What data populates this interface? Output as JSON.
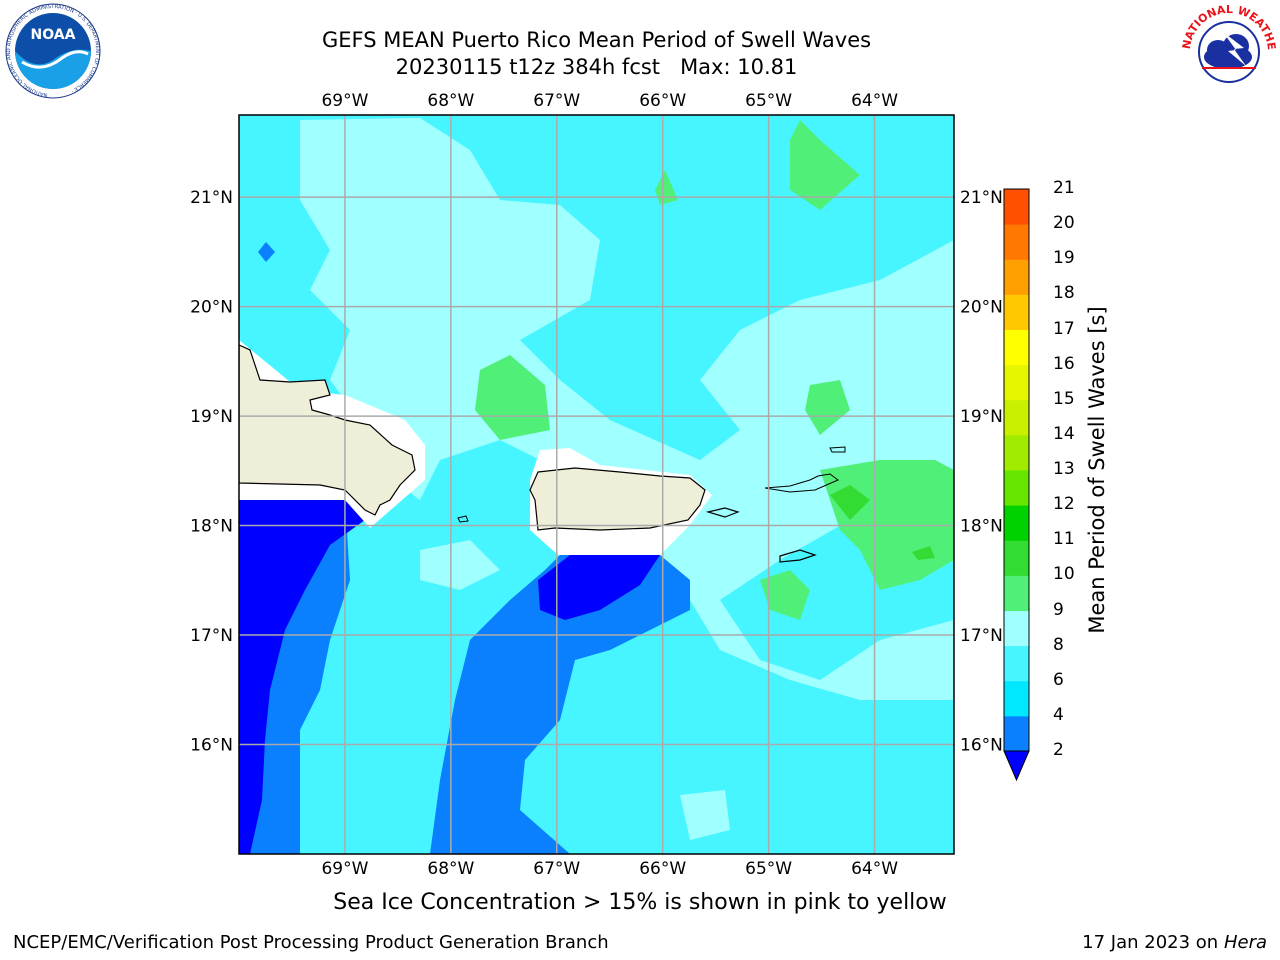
{
  "title": {
    "line1": "GEFS MEAN Puerto Rico Mean Period of Swell Waves",
    "line2": "20230115 t12z 384h fcst   Max: 10.81"
  },
  "logos": {
    "left": "NOAA",
    "left_ring_text": "NATIONAL OCEANIC AND ATMOSPHERIC ADMINISTRATION · U.S. DEPARTMENT OF COMMERCE ·",
    "right_ring_text": "NATIONAL WEATHER SERVICE"
  },
  "map": {
    "lon_ticks": [
      "69°W",
      "68°W",
      "67°W",
      "66°W",
      "65°W",
      "64°W"
    ],
    "lat_ticks": [
      "21°N",
      "20°N",
      "19°N",
      "18°N",
      "17°N",
      "16°N"
    ],
    "lon_values": [
      -69,
      -68,
      -67,
      -66,
      -65,
      -64
    ],
    "lat_values": [
      21,
      20,
      19,
      18,
      17,
      16
    ],
    "extent": {
      "lon_min": -70.0,
      "lon_max": -63.25,
      "lat_min": 15.0,
      "lat_max": 21.75
    },
    "grid": true
  },
  "colorbar": {
    "label": "Mean Period of Swell Waves [s]",
    "ticks": [
      "2",
      "4",
      "6",
      "8",
      "9",
      "10",
      "11",
      "12",
      "13",
      "14",
      "15",
      "16",
      "17",
      "18",
      "19",
      "20",
      "21"
    ],
    "colors": [
      "#0000ff",
      "#0a80ff",
      "#00e8ff",
      "#46f5ff",
      "#a0ffff",
      "#50f078",
      "#32dc32",
      "#00d200",
      "#64e600",
      "#a0eb00",
      "#c8f000",
      "#e6f500",
      "#ffff00",
      "#ffc800",
      "#ffa000",
      "#ff7800",
      "#ff5000",
      "#ff2800",
      "#ff0000"
    ],
    "extend": "min"
  },
  "note": "Sea Ice Concentration > 15% is shown in pink to yellow",
  "footer": {
    "left": "NCEP/EMC/Verification Post Processing Product Generation Branch",
    "right_prefix": "17 Jan 2023 on ",
    "right_italic": "Hera"
  }
}
